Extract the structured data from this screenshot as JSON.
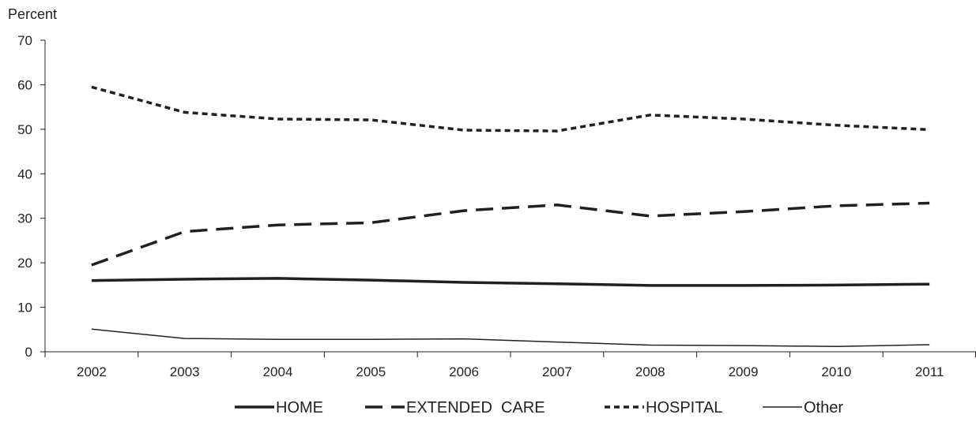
{
  "chart_data": {
    "type": "line",
    "title": "",
    "xlabel": "",
    "ylabel": "Percent",
    "ylim": [
      0,
      70
    ],
    "yticks": [
      0,
      10,
      20,
      30,
      40,
      50,
      60,
      70
    ],
    "grid": false,
    "legend_position": "bottom",
    "categories": [
      "2002",
      "2003",
      "2004",
      "2005",
      "2006",
      "2007",
      "2008",
      "2009",
      "2010",
      "2011"
    ],
    "series": [
      {
        "name": "HOME",
        "style": "solid-thick",
        "color": "#231f20",
        "values": [
          16.0,
          16.3,
          16.5,
          16.1,
          15.6,
          15.3,
          14.9,
          14.9,
          15.0,
          15.2
        ]
      },
      {
        "name": "EXTENDED  CARE",
        "style": "long-dash",
        "color": "#231f20",
        "values": [
          19.5,
          27.0,
          28.5,
          29.0,
          31.7,
          33.0,
          30.5,
          31.5,
          32.8,
          33.4
        ]
      },
      {
        "name": "HOSPITAL",
        "style": "short-dash",
        "color": "#231f20",
        "values": [
          59.5,
          53.8,
          52.3,
          52.1,
          49.8,
          49.6,
          53.2,
          52.3,
          50.9,
          49.9
        ]
      },
      {
        "name": "Other",
        "style": "solid-thin",
        "color": "#231f20",
        "values": [
          5.1,
          3.0,
          2.8,
          2.8,
          2.9,
          2.2,
          1.5,
          1.4,
          1.2,
          1.6
        ]
      }
    ]
  }
}
